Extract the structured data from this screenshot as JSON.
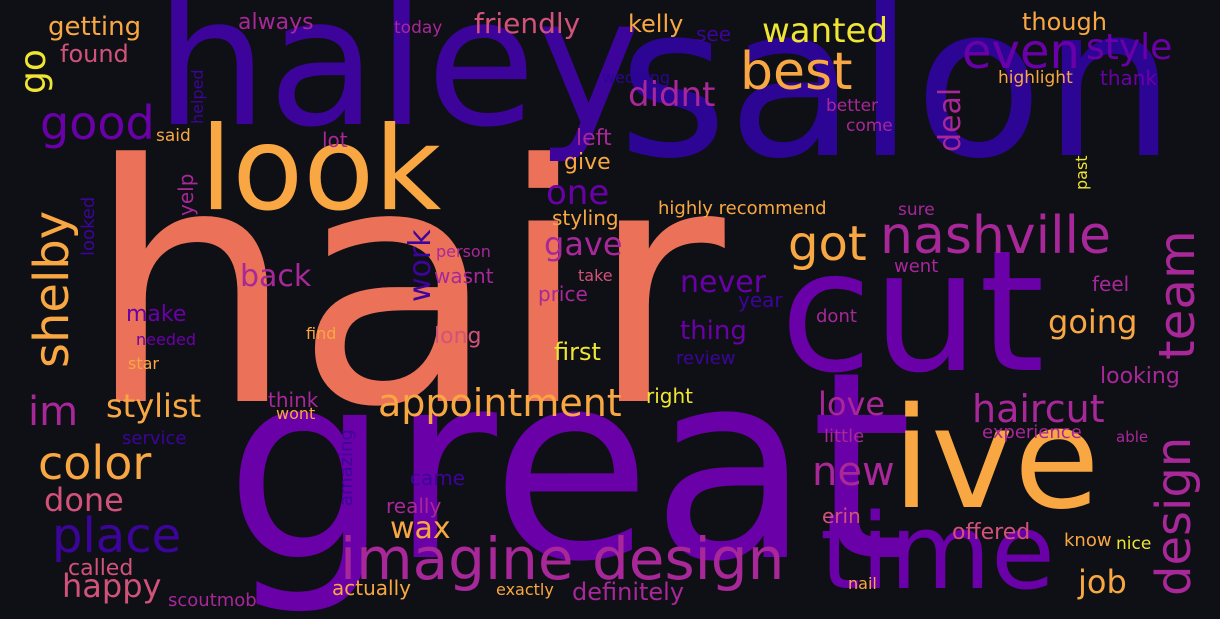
{
  "background": "#0e1016",
  "palette": {
    "salmon": "#eb7258",
    "orange": "#f9a742",
    "yellow": "#f0e533",
    "rose": "#d2527a",
    "magenta": "#a82799",
    "purple": "#6a00a8",
    "indigo": "#3d049b",
    "deep": "#2c0594"
  },
  "words": [
    {
      "text": "hair",
      "c": "salmon"
    },
    {
      "text": "great",
      "c": "purple"
    },
    {
      "text": "salon",
      "c": "deep"
    },
    {
      "text": "haley",
      "c": "indigo"
    },
    {
      "text": "cut",
      "c": "purple"
    },
    {
      "text": "ive",
      "c": "orange"
    },
    {
      "text": "look",
      "c": "orange"
    },
    {
      "text": "time",
      "c": "purple"
    },
    {
      "text": "imagine design",
      "c": "magenta"
    },
    {
      "text": "nashville",
      "c": "magenta"
    },
    {
      "text": "best",
      "c": "orange"
    },
    {
      "text": "even",
      "c": "purple"
    },
    {
      "text": "got",
      "c": "orange"
    },
    {
      "text": "good",
      "c": "purple"
    },
    {
      "text": "team",
      "c": "magenta"
    },
    {
      "text": "design",
      "c": "magenta"
    },
    {
      "text": "shelby",
      "c": "orange"
    },
    {
      "text": "style",
      "c": "purple"
    },
    {
      "text": "color",
      "c": "orange"
    },
    {
      "text": "place",
      "c": "indigo"
    },
    {
      "text": "appointment",
      "c": "orange"
    },
    {
      "text": "haircut",
      "c": "magenta"
    },
    {
      "text": "new",
      "c": "magenta"
    },
    {
      "text": "im",
      "c": "magenta"
    },
    {
      "text": "stylist",
      "c": "orange"
    },
    {
      "text": "wanted",
      "c": "yellow"
    },
    {
      "text": "go",
      "c": "yellow"
    },
    {
      "text": "one",
      "c": "purple"
    },
    {
      "text": "going",
      "c": "orange"
    },
    {
      "text": "didnt",
      "c": "magenta"
    },
    {
      "text": "love",
      "c": "magenta"
    },
    {
      "text": "happy",
      "c": "rose"
    },
    {
      "text": "job",
      "c": "orange"
    },
    {
      "text": "done",
      "c": "rose"
    },
    {
      "text": "back",
      "c": "magenta"
    },
    {
      "text": "gave",
      "c": "magenta"
    },
    {
      "text": "wax",
      "c": "orange"
    },
    {
      "text": "work",
      "c": "indigo"
    },
    {
      "text": "deal",
      "c": "magenta"
    },
    {
      "text": "never",
      "c": "purple"
    },
    {
      "text": "friendly",
      "c": "rose"
    },
    {
      "text": "getting",
      "c": "orange"
    },
    {
      "text": "first",
      "c": "yellow"
    },
    {
      "text": "thing",
      "c": "purple"
    },
    {
      "text": "found",
      "c": "rose"
    },
    {
      "text": "always",
      "c": "magenta"
    },
    {
      "text": "kelly",
      "c": "orange"
    },
    {
      "text": "though",
      "c": "orange"
    },
    {
      "text": "thank",
      "c": "purple"
    },
    {
      "text": "highlight",
      "c": "orange"
    },
    {
      "text": "wedding",
      "c": "deep"
    },
    {
      "text": "today",
      "c": "magenta"
    },
    {
      "text": "see",
      "c": "indigo"
    },
    {
      "text": "helped",
      "c": "indigo"
    },
    {
      "text": "said",
      "c": "orange"
    },
    {
      "text": "lot",
      "c": "magenta"
    },
    {
      "text": "left",
      "c": "magenta"
    },
    {
      "text": "better",
      "c": "magenta"
    },
    {
      "text": "come",
      "c": "magenta"
    },
    {
      "text": "past",
      "c": "yellow"
    },
    {
      "text": "give",
      "c": "orange"
    },
    {
      "text": "yelp",
      "c": "magenta"
    },
    {
      "text": "looked",
      "c": "indigo"
    },
    {
      "text": "styling",
      "c": "orange"
    },
    {
      "text": "highly recommend",
      "c": "orange"
    },
    {
      "text": "sure",
      "c": "magenta"
    },
    {
      "text": "person",
      "c": "magenta"
    },
    {
      "text": "went",
      "c": "magenta"
    },
    {
      "text": "wasnt",
      "c": "magenta"
    },
    {
      "text": "take",
      "c": "rose"
    },
    {
      "text": "price",
      "c": "magenta"
    },
    {
      "text": "feel",
      "c": "magenta"
    },
    {
      "text": "year",
      "c": "indigo"
    },
    {
      "text": "make",
      "c": "purple"
    },
    {
      "text": "find",
      "c": "orange"
    },
    {
      "text": "needed",
      "c": "purple"
    },
    {
      "text": "long",
      "c": "rose"
    },
    {
      "text": "dont",
      "c": "magenta"
    },
    {
      "text": "star",
      "c": "orange"
    },
    {
      "text": "review",
      "c": "indigo"
    },
    {
      "text": "looking",
      "c": "magenta"
    },
    {
      "text": "right",
      "c": "yellow"
    },
    {
      "text": "think",
      "c": "magenta"
    },
    {
      "text": "wont",
      "c": "orange"
    },
    {
      "text": "service",
      "c": "indigo"
    },
    {
      "text": "amazing",
      "c": "indigo"
    },
    {
      "text": "little",
      "c": "magenta"
    },
    {
      "text": "experience",
      "c": "magenta"
    },
    {
      "text": "able",
      "c": "magenta"
    },
    {
      "text": "came",
      "c": "indigo"
    },
    {
      "text": "really",
      "c": "magenta"
    },
    {
      "text": "erin",
      "c": "rose"
    },
    {
      "text": "offered",
      "c": "rose"
    },
    {
      "text": "know",
      "c": "orange"
    },
    {
      "text": "nice",
      "c": "yellow"
    },
    {
      "text": "called",
      "c": "rose"
    },
    {
      "text": "scoutmob",
      "c": "magenta"
    },
    {
      "text": "actually",
      "c": "orange"
    },
    {
      "text": "exactly",
      "c": "orange"
    },
    {
      "text": "definitely",
      "c": "magenta"
    },
    {
      "text": "nail",
      "c": "orange"
    }
  ]
}
